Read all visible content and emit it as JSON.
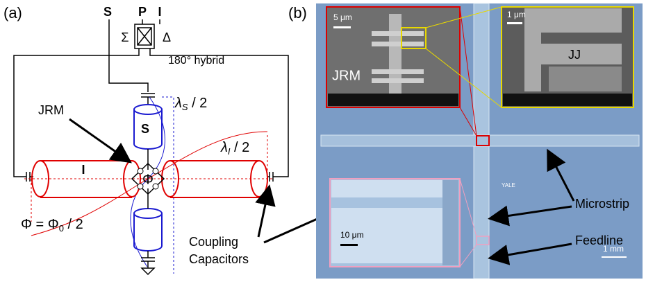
{
  "panel_a": {
    "label": "(a)",
    "ports": [
      "S",
      "P",
      "I"
    ],
    "sum": "Σ",
    "delta": "Δ",
    "hybrid": "180° hybrid",
    "lambda_s": {
      "symbol": "λ",
      "sub": "S",
      "rest": " / 2"
    },
    "lambda_i": {
      "symbol": "λ",
      "sub": "I",
      "rest": " / 2"
    },
    "jrm": "JRM",
    "resonator_s": "S",
    "resonator_i": "I",
    "flux": "Φ",
    "flux_condition": {
      "lhs": "Φ = Φ",
      "sub": "0",
      "rest": " / 2"
    },
    "coupling": [
      "Coupling",
      "Capacitors"
    ]
  },
  "panel_b": {
    "label": "(b)",
    "jrm_inset": {
      "scale": "5 μm",
      "label": "JRM"
    },
    "jj_inset": {
      "scale": "1 μm",
      "label": "JJ"
    },
    "capacitor_inset": {
      "scale": "10 μm"
    },
    "logo": "YALE",
    "microstrip": "Microstrip",
    "feedline": "Feedline",
    "scale": "1 mm"
  }
}
